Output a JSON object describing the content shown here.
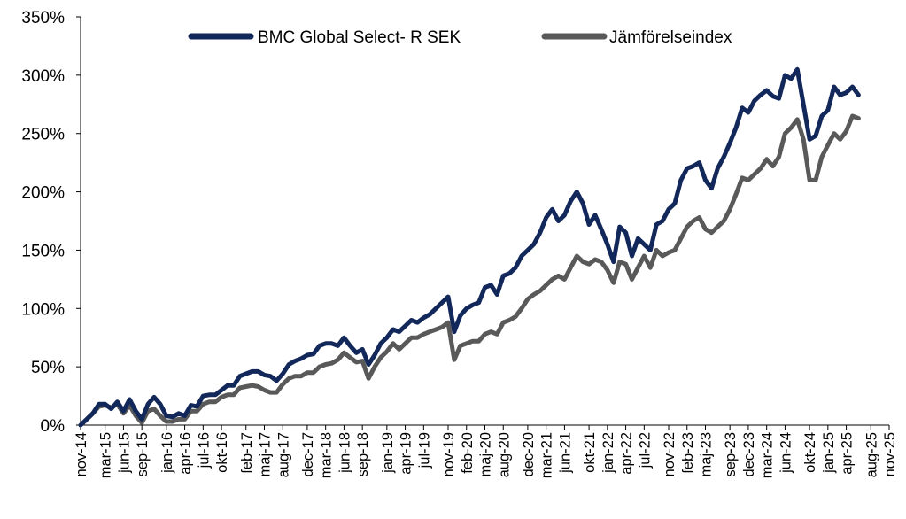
{
  "chart_data": {
    "type": "line",
    "title": "",
    "xlabel": "",
    "ylabel": "",
    "ylim": [
      0,
      350
    ],
    "yticks": [
      "0%",
      "50%",
      "100%",
      "150%",
      "200%",
      "250%",
      "300%",
      "350%"
    ],
    "ytick_values": [
      0,
      50,
      100,
      150,
      200,
      250,
      300,
      350
    ],
    "xticks": [
      "nov-14",
      "mar-15",
      "jun-15",
      "sep-15",
      "jan-16",
      "apr-16",
      "jul-16",
      "okt-16",
      "feb-17",
      "maj-17",
      "aug-17",
      "dec-17",
      "mar-18",
      "jun-18",
      "sep-18",
      "jan-19",
      "apr-19",
      "jul-19",
      "nov-19",
      "feb-20",
      "maj-20",
      "aug-20",
      "dec-20",
      "mar-21",
      "jun-21",
      "okt-21",
      "jan-22",
      "apr-22",
      "jul-22",
      "nov-22",
      "feb-23",
      "maj-23",
      "sep-23",
      "dec-23",
      "mar-24",
      "jun-24",
      "okt-24",
      "jan-25",
      "apr-25",
      "aug-25",
      "nov-25"
    ],
    "xtick_months": [
      0,
      4,
      7,
      10,
      14,
      17,
      20,
      23,
      27,
      30,
      33,
      37,
      40,
      43,
      46,
      50,
      53,
      56,
      60,
      63,
      66,
      69,
      73,
      76,
      79,
      83,
      86,
      89,
      92,
      96,
      99,
      102,
      106,
      109,
      112,
      115,
      119,
      122,
      125,
      129,
      132
    ],
    "grid": false,
    "legend_position": "top-center",
    "series": [
      {
        "name": "BMC Global Select- R SEK",
        "color": "#13285a",
        "points": [
          [
            0,
            0
          ],
          [
            1,
            5
          ],
          [
            2,
            10
          ],
          [
            3,
            18
          ],
          [
            4,
            18
          ],
          [
            5,
            14
          ],
          [
            6,
            20
          ],
          [
            7,
            12
          ],
          [
            8,
            22
          ],
          [
            9,
            12
          ],
          [
            10,
            5
          ],
          [
            11,
            18
          ],
          [
            12,
            24
          ],
          [
            13,
            18
          ],
          [
            14,
            8
          ],
          [
            15,
            7
          ],
          [
            16,
            10
          ],
          [
            17,
            8
          ],
          [
            18,
            17
          ],
          [
            19,
            16
          ],
          [
            20,
            25
          ],
          [
            21,
            26
          ],
          [
            22,
            26
          ],
          [
            23,
            30
          ],
          [
            24,
            34
          ],
          [
            25,
            34
          ],
          [
            26,
            42
          ],
          [
            27,
            44
          ],
          [
            28,
            46
          ],
          [
            29,
            46
          ],
          [
            30,
            43
          ],
          [
            31,
            42
          ],
          [
            32,
            38
          ],
          [
            33,
            44
          ],
          [
            34,
            52
          ],
          [
            35,
            55
          ],
          [
            36,
            57
          ],
          [
            37,
            60
          ],
          [
            38,
            61
          ],
          [
            39,
            68
          ],
          [
            40,
            70
          ],
          [
            41,
            70
          ],
          [
            42,
            68
          ],
          [
            43,
            75
          ],
          [
            44,
            68
          ],
          [
            45,
            62
          ],
          [
            46,
            65
          ],
          [
            47,
            52
          ],
          [
            48,
            60
          ],
          [
            49,
            70
          ],
          [
            50,
            75
          ],
          [
            51,
            82
          ],
          [
            52,
            80
          ],
          [
            53,
            85
          ],
          [
            54,
            90
          ],
          [
            55,
            88
          ],
          [
            56,
            92
          ],
          [
            57,
            95
          ],
          [
            58,
            100
          ],
          [
            59,
            105
          ],
          [
            60,
            110
          ],
          [
            61,
            80
          ],
          [
            62,
            94
          ],
          [
            63,
            100
          ],
          [
            64,
            103
          ],
          [
            65,
            105
          ],
          [
            66,
            118
          ],
          [
            67,
            120
          ],
          [
            68,
            112
          ],
          [
            69,
            128
          ],
          [
            70,
            130
          ],
          [
            71,
            135
          ],
          [
            72,
            145
          ],
          [
            73,
            150
          ],
          [
            74,
            155
          ],
          [
            75,
            165
          ],
          [
            76,
            178
          ],
          [
            77,
            185
          ],
          [
            78,
            175
          ],
          [
            79,
            180
          ],
          [
            80,
            192
          ],
          [
            81,
            200
          ],
          [
            82,
            190
          ],
          [
            83,
            172
          ],
          [
            84,
            180
          ],
          [
            85,
            168
          ],
          [
            86,
            155
          ],
          [
            87,
            140
          ],
          [
            88,
            170
          ],
          [
            89,
            165
          ],
          [
            90,
            145
          ],
          [
            91,
            160
          ],
          [
            92,
            155
          ],
          [
            93,
            150
          ],
          [
            94,
            172
          ],
          [
            95,
            175
          ],
          [
            96,
            185
          ],
          [
            97,
            190
          ],
          [
            98,
            210
          ],
          [
            99,
            220
          ],
          [
            100,
            222
          ],
          [
            101,
            225
          ],
          [
            102,
            210
          ],
          [
            103,
            203
          ],
          [
            104,
            220
          ],
          [
            105,
            230
          ],
          [
            106,
            242
          ],
          [
            107,
            255
          ],
          [
            108,
            272
          ],
          [
            109,
            268
          ],
          [
            110,
            278
          ],
          [
            111,
            283
          ],
          [
            112,
            287
          ],
          [
            113,
            282
          ],
          [
            114,
            280
          ],
          [
            115,
            300
          ],
          [
            116,
            297
          ],
          [
            117,
            305
          ],
          [
            118,
            275
          ],
          [
            119,
            245
          ],
          [
            120,
            248
          ],
          [
            121,
            265
          ],
          [
            122,
            270
          ],
          [
            123,
            290
          ],
          [
            124,
            283
          ],
          [
            125,
            285
          ],
          [
            126,
            290
          ],
          [
            127,
            283
          ]
        ]
      },
      {
        "name": "Jämförelseindex",
        "color": "#595959",
        "points": [
          [
            0,
            0
          ],
          [
            1,
            5
          ],
          [
            2,
            10
          ],
          [
            3,
            16
          ],
          [
            4,
            17
          ],
          [
            5,
            15
          ],
          [
            6,
            18
          ],
          [
            7,
            10
          ],
          [
            8,
            17
          ],
          [
            9,
            8
          ],
          [
            10,
            2
          ],
          [
            11,
            12
          ],
          [
            12,
            14
          ],
          [
            13,
            8
          ],
          [
            14,
            3
          ],
          [
            15,
            3
          ],
          [
            16,
            5
          ],
          [
            17,
            5
          ],
          [
            18,
            12
          ],
          [
            19,
            12
          ],
          [
            20,
            18
          ],
          [
            21,
            20
          ],
          [
            22,
            20
          ],
          [
            23,
            24
          ],
          [
            24,
            26
          ],
          [
            25,
            26
          ],
          [
            26,
            32
          ],
          [
            27,
            33
          ],
          [
            28,
            34
          ],
          [
            29,
            33
          ],
          [
            30,
            30
          ],
          [
            31,
            28
          ],
          [
            32,
            28
          ],
          [
            33,
            35
          ],
          [
            34,
            40
          ],
          [
            35,
            42
          ],
          [
            36,
            42
          ],
          [
            37,
            45
          ],
          [
            38,
            45
          ],
          [
            39,
            50
          ],
          [
            40,
            52
          ],
          [
            41,
            53
          ],
          [
            42,
            56
          ],
          [
            43,
            62
          ],
          [
            44,
            58
          ],
          [
            45,
            54
          ],
          [
            46,
            55
          ],
          [
            47,
            40
          ],
          [
            48,
            50
          ],
          [
            49,
            58
          ],
          [
            50,
            63
          ],
          [
            51,
            70
          ],
          [
            52,
            65
          ],
          [
            53,
            70
          ],
          [
            54,
            75
          ],
          [
            55,
            75
          ],
          [
            56,
            78
          ],
          [
            57,
            80
          ],
          [
            58,
            82
          ],
          [
            59,
            84
          ],
          [
            60,
            88
          ],
          [
            61,
            56
          ],
          [
            62,
            68
          ],
          [
            63,
            70
          ],
          [
            64,
            72
          ],
          [
            65,
            72
          ],
          [
            66,
            78
          ],
          [
            67,
            80
          ],
          [
            68,
            78
          ],
          [
            69,
            88
          ],
          [
            70,
            90
          ],
          [
            71,
            93
          ],
          [
            72,
            100
          ],
          [
            73,
            108
          ],
          [
            74,
            112
          ],
          [
            75,
            115
          ],
          [
            76,
            120
          ],
          [
            77,
            125
          ],
          [
            78,
            128
          ],
          [
            79,
            125
          ],
          [
            80,
            135
          ],
          [
            81,
            145
          ],
          [
            82,
            140
          ],
          [
            83,
            138
          ],
          [
            84,
            142
          ],
          [
            85,
            140
          ],
          [
            86,
            133
          ],
          [
            87,
            122
          ],
          [
            88,
            140
          ],
          [
            89,
            138
          ],
          [
            90,
            125
          ],
          [
            91,
            135
          ],
          [
            92,
            145
          ],
          [
            93,
            135
          ],
          [
            94,
            150
          ],
          [
            95,
            145
          ],
          [
            96,
            148
          ],
          [
            97,
            150
          ],
          [
            98,
            160
          ],
          [
            99,
            170
          ],
          [
            100,
            175
          ],
          [
            101,
            178
          ],
          [
            102,
            168
          ],
          [
            103,
            165
          ],
          [
            104,
            170
          ],
          [
            105,
            175
          ],
          [
            106,
            185
          ],
          [
            107,
            198
          ],
          [
            108,
            212
          ],
          [
            109,
            210
          ],
          [
            110,
            215
          ],
          [
            111,
            220
          ],
          [
            112,
            228
          ],
          [
            113,
            222
          ],
          [
            114,
            230
          ],
          [
            115,
            250
          ],
          [
            116,
            255
          ],
          [
            117,
            262
          ],
          [
            118,
            245
          ],
          [
            119,
            210
          ],
          [
            120,
            210
          ],
          [
            121,
            230
          ],
          [
            122,
            240
          ],
          [
            123,
            250
          ],
          [
            124,
            245
          ],
          [
            125,
            252
          ],
          [
            126,
            265
          ],
          [
            127,
            263
          ]
        ]
      }
    ]
  }
}
